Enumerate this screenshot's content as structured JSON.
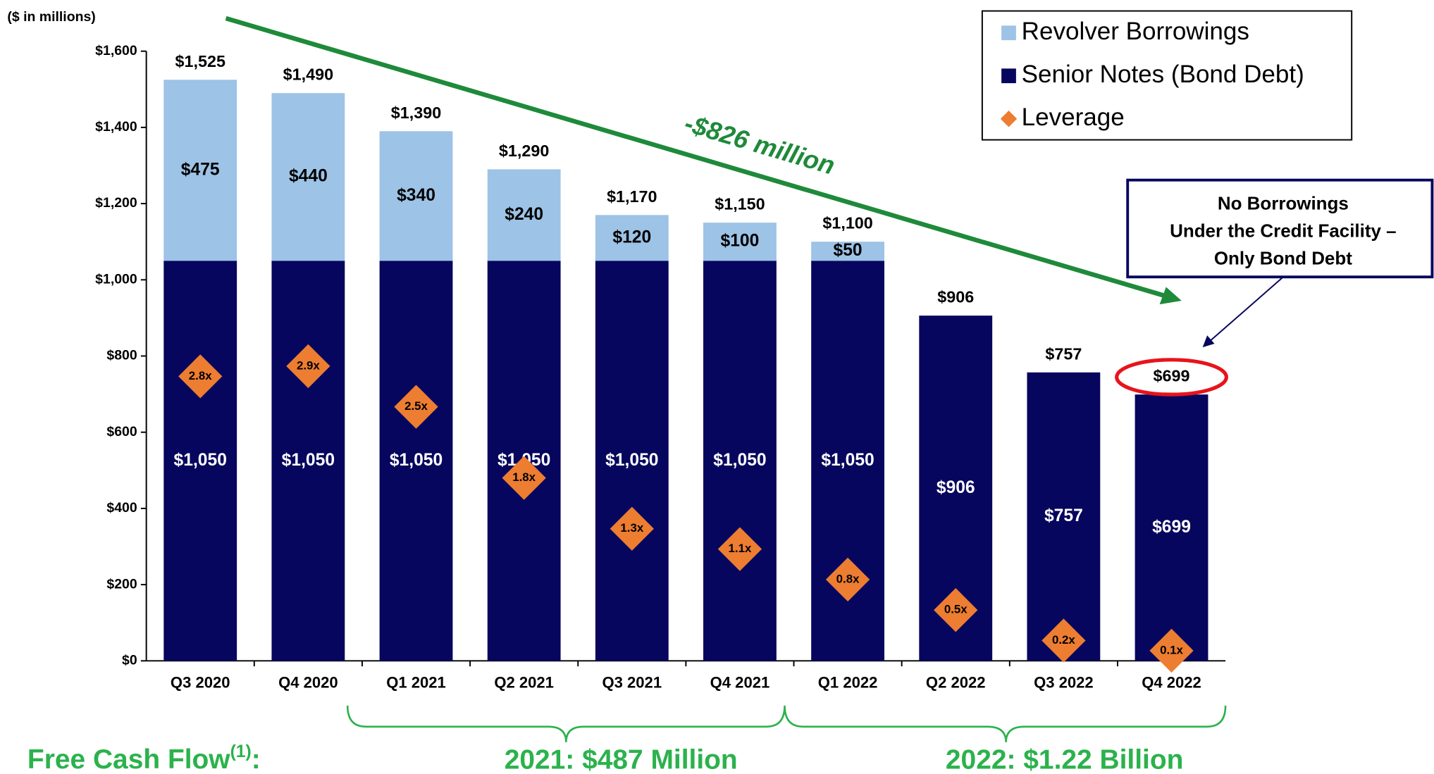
{
  "chart_data": {
    "type": "stacked_bar",
    "units_label": "($ in millions)",
    "categories": [
      "Q3 2020",
      "Q4 2020",
      "Q1 2021",
      "Q2 2021",
      "Q3 2021",
      "Q4 2021",
      "Q1 2022",
      "Q2 2022",
      "Q3 2022",
      "Q4 2022"
    ],
    "series": [
      {
        "name": "Senior Notes (Bond Debt)",
        "color": "#06065e",
        "values": [
          1050,
          1050,
          1050,
          1050,
          1050,
          1050,
          1050,
          906,
          757,
          699
        ],
        "value_labels": [
          "$1,050",
          "$1,050",
          "$1,050",
          "$1,050",
          "$1,050",
          "$1,050",
          "$1,050",
          "$906",
          "$757",
          "$699"
        ]
      },
      {
        "name": "Revolver Borrowings",
        "color": "#9dc3e6",
        "values": [
          475,
          440,
          340,
          240,
          120,
          100,
          50,
          null,
          null,
          null
        ],
        "value_labels": [
          "$475",
          "$440",
          "$340",
          "$240",
          "$120",
          "$100",
          "$50",
          null,
          null,
          null
        ]
      },
      {
        "name": "Leverage",
        "color": "#ed7d31",
        "type": "scatter",
        "marker": "diamond",
        "axis": "y2",
        "values": [
          2.8,
          2.9,
          2.5,
          1.8,
          1.3,
          1.1,
          0.8,
          0.5,
          0.2,
          0.1
        ],
        "value_labels": [
          "2.8x",
          "2.9x",
          "2.5x",
          "1.8x",
          "1.3x",
          "1.1x",
          "0.8x",
          "0.5x",
          "0.2x",
          "0.1x"
        ]
      }
    ],
    "totals": {
      "values": [
        1525,
        1490,
        1390,
        1290,
        1170,
        1150,
        1100,
        906,
        757,
        699
      ],
      "value_labels": [
        "$1,525",
        "$1,490",
        "$1,390",
        "$1,290",
        "$1,170",
        "$1,150",
        "$1,100",
        "$906",
        "$757",
        "$699"
      ]
    },
    "ylim": [
      0,
      1600
    ],
    "yticks": [
      {
        "value": 0,
        "label": "$0"
      },
      {
        "value": 200,
        "label": "$200"
      },
      {
        "value": 400,
        "label": "$400"
      },
      {
        "value": 600,
        "label": "$600"
      },
      {
        "value": 800,
        "label": "$800"
      },
      {
        "value": 1000,
        "label": "$1,000"
      },
      {
        "value": 1200,
        "label": "$1,200"
      },
      {
        "value": 1400,
        "label": "$1,400"
      },
      {
        "value": 1600,
        "label": "$1,600"
      }
    ],
    "y2lim": [
      0,
      6
    ],
    "legend": "top-right",
    "trend_annotation": "-$826 million",
    "callout": [
      "No Borrowings",
      "Under the Credit Facility –",
      "Only Bond Debt"
    ],
    "fcf_label": [
      "Free Cash Flow",
      "(1)",
      ":"
    ],
    "fcf_periods": [
      "2021: $487 Million",
      "2022: $1.22 Billion"
    ]
  }
}
